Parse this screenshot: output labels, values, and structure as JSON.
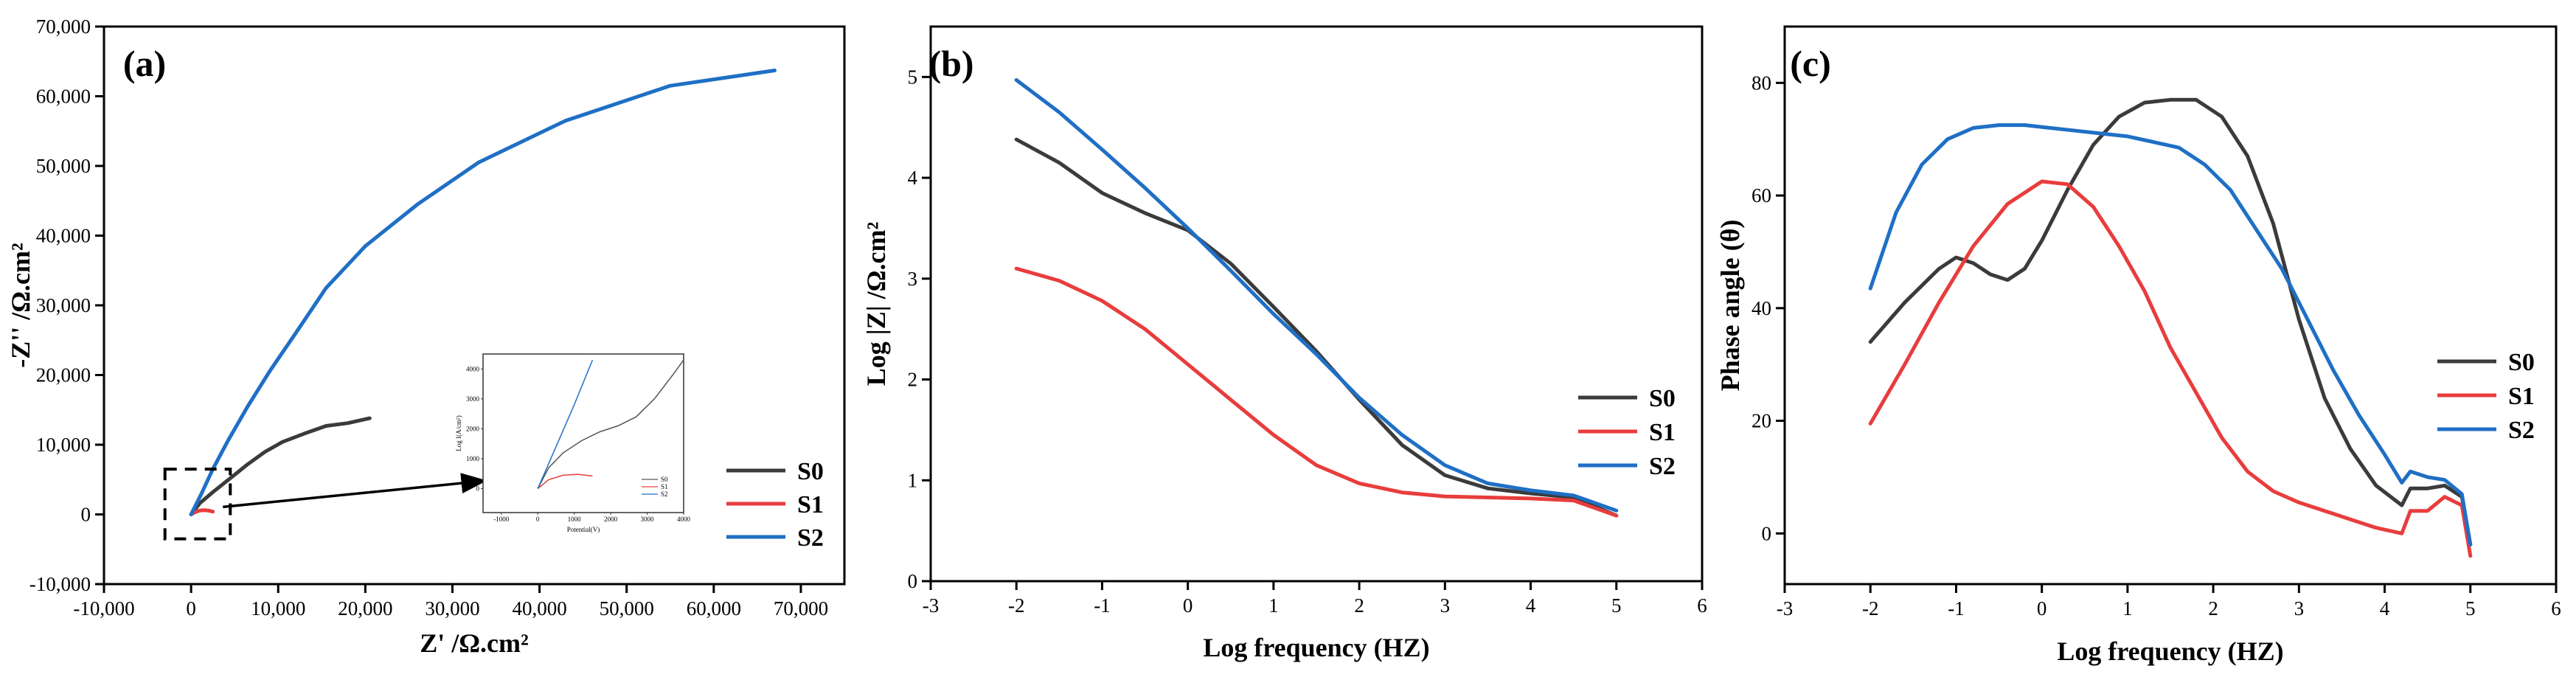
{
  "chart_data": [
    {
      "id": "a",
      "type": "line",
      "panel_label": "(a)",
      "title": "",
      "xlabel": "Z' /Ω.cm²",
      "ylabel": "-Z'' /Ω.cm²",
      "xlim": [
        -10000,
        75000
      ],
      "ylim": [
        -10000,
        70000
      ],
      "xticks": [
        -10000,
        0,
        10000,
        20000,
        30000,
        40000,
        50000,
        60000,
        70000
      ],
      "xtick_labels": [
        "-10,000",
        "0",
        "10,000",
        "20,000",
        "30,000",
        "40,000",
        "50,000",
        "60,000",
        "70,000"
      ],
      "yticks": [
        -10000,
        0,
        10000,
        20000,
        30000,
        40000,
        50000,
        60000,
        70000
      ],
      "ytick_labels": [
        "-10,000",
        "0",
        "10,000",
        "20,000",
        "30,000",
        "40,000",
        "50,000",
        "60,000",
        "70,000"
      ],
      "legend": "right",
      "series": [
        {
          "name": "S0",
          "color": "#3b3b3b",
          "x": [
            0,
            1000,
            2500,
            4500,
            6500,
            8500,
            10500,
            13000,
            15500,
            18000,
            20500
          ],
          "y": [
            0,
            1600,
            3200,
            5200,
            7200,
            9000,
            10400,
            11600,
            12700,
            13100,
            13800
          ]
        },
        {
          "name": "S1",
          "color": "#e83d3d",
          "x": [
            0,
            500,
            1000,
            1500,
            2000,
            2500
          ],
          "y": [
            0,
            350,
            550,
            600,
            550,
            400
          ]
        },
        {
          "name": "S2",
          "color": "#1f6fc5",
          "x": [
            0,
            1200,
            2500,
            4200,
            6500,
            9000,
            12000,
            15500,
            20000,
            26000,
            33000,
            43000,
            55000,
            67000
          ],
          "y": [
            0,
            3000,
            6500,
            10500,
            15500,
            20500,
            26000,
            32500,
            38500,
            44500,
            50500,
            56500,
            61500,
            63700
          ]
        }
      ],
      "zoom_box": {
        "x": [
          -3000,
          4500
        ],
        "y": [
          -3500,
          6500
        ]
      },
      "inset": {
        "type": "line",
        "xlabel": "Potential(V)",
        "ylabel": "Log I(A/cm²)",
        "xlim": [
          -1500,
          4000
        ],
        "ylim": [
          -800,
          4500
        ],
        "xticks": [
          -1000,
          0,
          1000,
          2000,
          3000,
          4000
        ],
        "xtick_labels": [
          "-1000",
          "0",
          "1000",
          "2000",
          "3000",
          "4000"
        ],
        "yticks": [
          0,
          1000,
          2000,
          3000,
          4000
        ],
        "ytick_labels": [
          "0",
          "1000",
          "2000",
          "3000",
          "4000"
        ],
        "legend": [
          "S0",
          "S1",
          "S2"
        ]
      }
    },
    {
      "id": "b",
      "type": "line",
      "panel_label": "(b)",
      "title": "",
      "xlabel": "Log frequency (HZ)",
      "ylabel": "Log |Z| /Ω.cm²",
      "xlim": [
        -3,
        6
      ],
      "ylim": [
        0,
        5.5
      ],
      "xticks": [
        -3,
        -2,
        -1,
        0,
        1,
        2,
        3,
        4,
        5,
        6
      ],
      "yticks": [
        0,
        1,
        2,
        3,
        4,
        5
      ],
      "legend": "right",
      "series": [
        {
          "name": "S0",
          "color": "#3b3b3b",
          "x": [
            -2,
            -1.5,
            -1,
            -0.5,
            0,
            0.5,
            1,
            1.5,
            2,
            2.5,
            3,
            3.5,
            4,
            4.5,
            5
          ],
          "y": [
            4.38,
            4.15,
            3.85,
            3.65,
            3.48,
            3.15,
            2.72,
            2.28,
            1.8,
            1.35,
            1.05,
            0.92,
            0.87,
            0.83,
            0.65
          ]
        },
        {
          "name": "S1",
          "color": "#e83d3d",
          "x": [
            -2,
            -1.5,
            -1,
            -0.5,
            0,
            0.5,
            1,
            1.5,
            2,
            2.5,
            3,
            3.5,
            4,
            4.5,
            5
          ],
          "y": [
            3.1,
            2.98,
            2.78,
            2.5,
            2.15,
            1.8,
            1.45,
            1.15,
            0.97,
            0.88,
            0.84,
            0.83,
            0.82,
            0.8,
            0.65
          ]
        },
        {
          "name": "S2",
          "color": "#1f6fc5",
          "x": [
            -2,
            -1.5,
            -1,
            -0.5,
            0,
            0.5,
            1,
            1.5,
            2,
            2.5,
            3,
            3.5,
            4,
            4.5,
            5
          ],
          "y": [
            4.97,
            4.65,
            4.28,
            3.9,
            3.5,
            3.08,
            2.65,
            2.25,
            1.82,
            1.45,
            1.15,
            0.97,
            0.9,
            0.85,
            0.7
          ]
        }
      ]
    },
    {
      "id": "c",
      "type": "line",
      "panel_label": "(c)",
      "title": "",
      "xlabel": "Log frequency (HZ)",
      "ylabel": "Phase angle (θ)",
      "xlim": [
        -3,
        6
      ],
      "ylim": [
        -9,
        90
      ],
      "xticks": [
        -3,
        -2,
        -1,
        0,
        1,
        2,
        3,
        4,
        5,
        6
      ],
      "yticks": [
        0,
        20,
        40,
        60,
        80
      ],
      "legend": "right",
      "series": [
        {
          "name": "S0",
          "color": "#3b3b3b",
          "x": [
            -2,
            -1.6,
            -1.2,
            -1,
            -0.8,
            -0.6,
            -0.4,
            -0.2,
            0,
            0.3,
            0.6,
            0.9,
            1.2,
            1.5,
            1.8,
            2.1,
            2.4,
            2.7,
            3,
            3.3,
            3.6,
            3.9,
            4.2,
            4.3,
            4.5,
            4.7,
            4.9,
            5
          ],
          "y": [
            34,
            41,
            47,
            49,
            48,
            46,
            45,
            47,
            52,
            61,
            69,
            74,
            76.5,
            77,
            77,
            74,
            67,
            55,
            38,
            24,
            15,
            8.5,
            5,
            8,
            8,
            8.5,
            6.5,
            -2
          ]
        },
        {
          "name": "S1",
          "color": "#e83d3d",
          "x": [
            -2,
            -1.6,
            -1.2,
            -0.8,
            -0.4,
            0,
            0.3,
            0.6,
            0.9,
            1.2,
            1.5,
            1.8,
            2.1,
            2.4,
            2.7,
            3,
            3.3,
            3.6,
            3.9,
            4.2,
            4.3,
            4.5,
            4.7,
            4.9,
            5
          ],
          "y": [
            19.5,
            30,
            41,
            51,
            58.5,
            62.5,
            62,
            58,
            51,
            43,
            33,
            25,
            17,
            11,
            7.5,
            5.5,
            4,
            2.5,
            1,
            0,
            4,
            4,
            6.5,
            5,
            -4
          ]
        },
        {
          "name": "S2",
          "color": "#1f6fc5",
          "x": [
            -2,
            -1.7,
            -1.4,
            -1.1,
            -0.8,
            -0.5,
            -0.2,
            0.1,
            0.4,
            0.7,
            1,
            1.3,
            1.6,
            1.9,
            2.2,
            2.5,
            2.8,
            3.1,
            3.4,
            3.7,
            4,
            4.2,
            4.3,
            4.5,
            4.7,
            4.9,
            5
          ],
          "y": [
            43.5,
            57,
            65.5,
            70,
            72,
            72.5,
            72.5,
            72,
            71.5,
            71,
            70.5,
            69.5,
            68.5,
            65.5,
            61,
            54,
            47,
            38,
            29,
            21,
            14,
            9,
            11,
            10,
            9.5,
            7,
            -2
          ]
        }
      ]
    }
  ]
}
